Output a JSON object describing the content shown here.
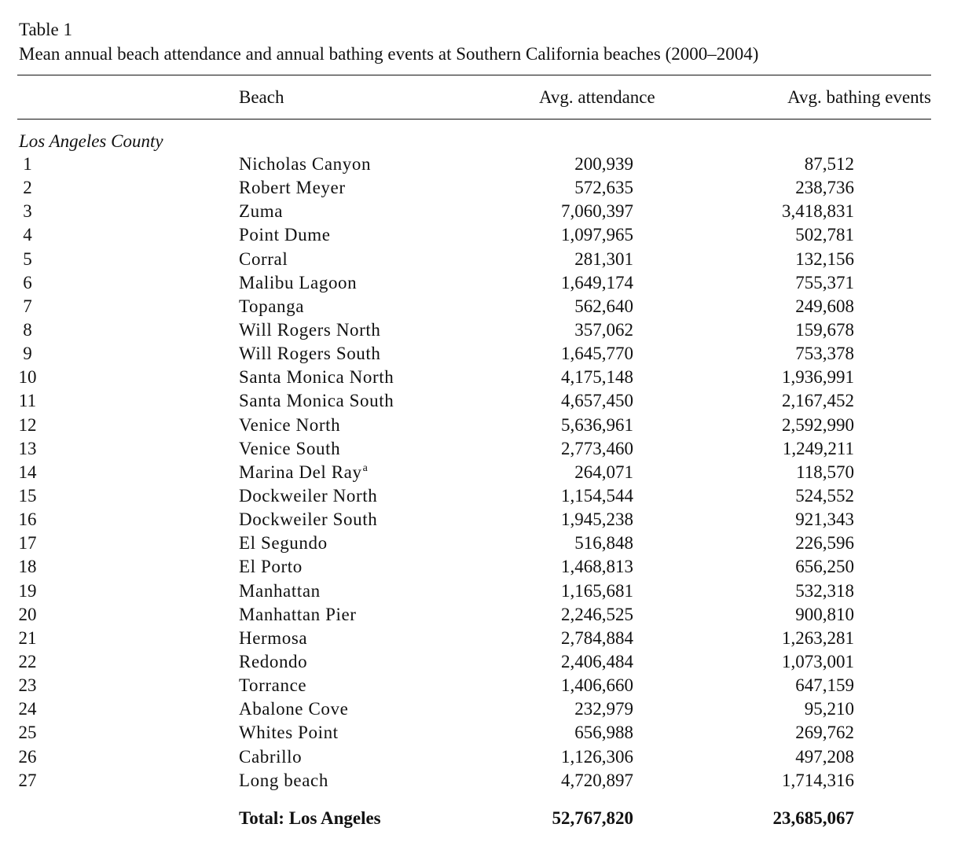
{
  "caption": {
    "label": "Table 1",
    "title": "Mean annual beach attendance and annual bathing events at Southern California beaches (2000–2004)"
  },
  "headers": {
    "beach": "Beach",
    "attendance": "Avg. attendance",
    "bathing": "Avg. bathing events"
  },
  "section": "Los Angeles County",
  "rows": [
    {
      "num": "1",
      "beach": "Nicholas Canyon",
      "attendance": "200,939",
      "bathing": "87,512"
    },
    {
      "num": "2",
      "beach": "Robert Meyer",
      "attendance": "572,635",
      "bathing": "238,736"
    },
    {
      "num": "3",
      "beach": "Zuma",
      "attendance": "7,060,397",
      "bathing": "3,418,831"
    },
    {
      "num": "4",
      "beach": "Point Dume",
      "attendance": "1,097,965",
      "bathing": "502,781"
    },
    {
      "num": "5",
      "beach": "Corral",
      "attendance": "281,301",
      "bathing": "132,156"
    },
    {
      "num": "6",
      "beach": "Malibu Lagoon",
      "attendance": "1,649,174",
      "bathing": "755,371"
    },
    {
      "num": "7",
      "beach": "Topanga",
      "attendance": "562,640",
      "bathing": "249,608"
    },
    {
      "num": "8",
      "beach": "Will Rogers North",
      "attendance": "357,062",
      "bathing": "159,678"
    },
    {
      "num": "9",
      "beach": "Will Rogers South",
      "attendance": "1,645,770",
      "bathing": "753,378"
    },
    {
      "num": "10",
      "beach": "Santa Monica North",
      "attendance": "4,175,148",
      "bathing": "1,936,991"
    },
    {
      "num": "11",
      "beach": "Santa Monica South",
      "attendance": "4,657,450",
      "bathing": "2,167,452"
    },
    {
      "num": "12",
      "beach": "Venice North",
      "attendance": "5,636,961",
      "bathing": "2,592,990"
    },
    {
      "num": "13",
      "beach": "Venice South",
      "attendance": "2,773,460",
      "bathing": "1,249,211"
    },
    {
      "num": "14",
      "beach": "Marina Del Ray",
      "note": "a",
      "attendance": "264,071",
      "bathing": "118,570"
    },
    {
      "num": "15",
      "beach": "Dockweiler North",
      "attendance": "1,154,544",
      "bathing": "524,552"
    },
    {
      "num": "16",
      "beach": "Dockweiler South",
      "attendance": "1,945,238",
      "bathing": "921,343"
    },
    {
      "num": "17",
      "beach": "El Segundo",
      "attendance": "516,848",
      "bathing": "226,596"
    },
    {
      "num": "18",
      "beach": "El Porto",
      "attendance": "1,468,813",
      "bathing": "656,250"
    },
    {
      "num": "19",
      "beach": "Manhattan",
      "attendance": "1,165,681",
      "bathing": "532,318"
    },
    {
      "num": "20",
      "beach": "Manhattan Pier",
      "attendance": "2,246,525",
      "bathing": "900,810"
    },
    {
      "num": "21",
      "beach": "Hermosa",
      "attendance": "2,784,884",
      "bathing": "1,263,281"
    },
    {
      "num": "22",
      "beach": "Redondo",
      "attendance": "2,406,484",
      "bathing": "1,073,001"
    },
    {
      "num": "23",
      "beach": "Torrance",
      "attendance": "1,406,660",
      "bathing": "647,159"
    },
    {
      "num": "24",
      "beach": "Abalone Cove",
      "attendance": "232,979",
      "bathing": "95,210"
    },
    {
      "num": "25",
      "beach": "Whites Point",
      "attendance": "656,988",
      "bathing": "269,762"
    },
    {
      "num": "26",
      "beach": "Cabrillo",
      "attendance": "1,126,306",
      "bathing": "497,208"
    },
    {
      "num": "27",
      "beach": "Long beach",
      "attendance": "4,720,897",
      "bathing": "1,714,316"
    }
  ],
  "total": {
    "label": "Total: Los Angeles",
    "attendance": "52,767,820",
    "bathing": "23,685,067"
  }
}
